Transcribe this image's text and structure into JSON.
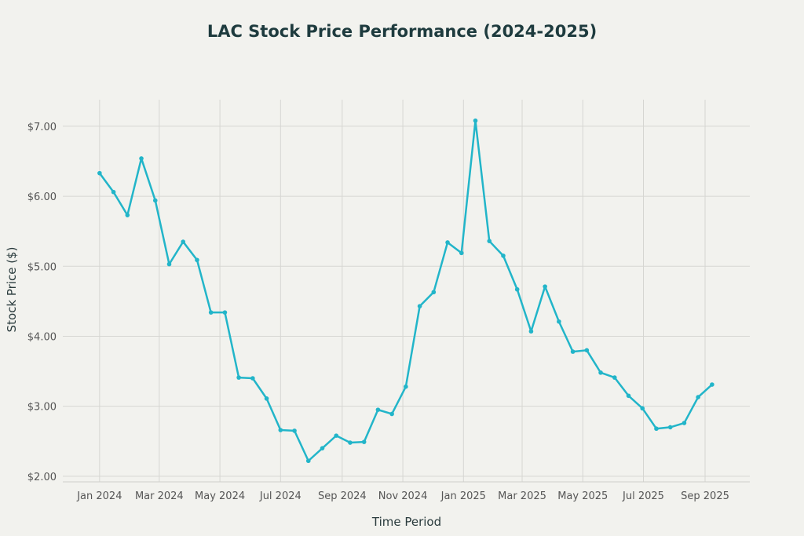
{
  "chart_data": {
    "type": "line",
    "title": "LAC Stock Price Performance (2024-2025)",
    "xlabel": "Time Period",
    "ylabel": "Stock Price ($)",
    "ylim": [
      1.92,
      7.38
    ],
    "xlim": [
      "2023-11-25",
      "2025-10-16"
    ],
    "grid": true,
    "line_color": "#22b5c9",
    "background": "#f2f2ee",
    "x_ticks": [
      {
        "date": "2024-01-01",
        "label": "Jan 2024"
      },
      {
        "date": "2024-03-01",
        "label": "Mar 2024"
      },
      {
        "date": "2024-05-01",
        "label": "May 2024"
      },
      {
        "date": "2024-07-01",
        "label": "Jul 2024"
      },
      {
        "date": "2024-09-01",
        "label": "Sep 2024"
      },
      {
        "date": "2024-11-01",
        "label": "Nov 2024"
      },
      {
        "date": "2025-01-01",
        "label": "Jan 2025"
      },
      {
        "date": "2025-03-01",
        "label": "Mar 2025"
      },
      {
        "date": "2025-05-01",
        "label": "May 2025"
      },
      {
        "date": "2025-07-01",
        "label": "Jul 2025"
      },
      {
        "date": "2025-09-01",
        "label": "Sep 2025"
      }
    ],
    "y_ticks": [
      {
        "value": 2,
        "label": "$2.00"
      },
      {
        "value": 3,
        "label": "$3.00"
      },
      {
        "value": 4,
        "label": "$4.00"
      },
      {
        "value": 5,
        "label": "$5.00"
      },
      {
        "value": 6,
        "label": "$6.00"
      },
      {
        "value": 7,
        "label": "$7.00"
      }
    ],
    "x": [
      "2024-01-01",
      "2024-01-15",
      "2024-01-29",
      "2024-02-12",
      "2024-02-26",
      "2024-03-11",
      "2024-03-25",
      "2024-04-08",
      "2024-04-22",
      "2024-05-06",
      "2024-05-20",
      "2024-06-03",
      "2024-06-17",
      "2024-07-01",
      "2024-07-15",
      "2024-07-29",
      "2024-08-12",
      "2024-08-26",
      "2024-09-09",
      "2024-09-23",
      "2024-10-07",
      "2024-10-21",
      "2024-11-04",
      "2024-11-18",
      "2024-12-02",
      "2024-12-16",
      "2024-12-30",
      "2025-01-13",
      "2025-01-27",
      "2025-02-10",
      "2025-02-24",
      "2025-03-10",
      "2025-03-24",
      "2025-04-07",
      "2025-04-21",
      "2025-05-05",
      "2025-05-19",
      "2025-06-02",
      "2025-06-16",
      "2025-06-30",
      "2025-07-14",
      "2025-07-28",
      "2025-08-11",
      "2025-08-25",
      "2025-09-08"
    ],
    "values": [
      6.33,
      6.06,
      5.73,
      6.54,
      5.94,
      5.03,
      5.35,
      5.09,
      4.34,
      4.34,
      3.41,
      3.4,
      3.11,
      2.66,
      2.65,
      2.22,
      2.4,
      2.58,
      2.48,
      2.49,
      2.95,
      2.89,
      3.28,
      4.43,
      4.63,
      5.34,
      5.19,
      7.08,
      5.36,
      5.15,
      4.67,
      4.07,
      4.71,
      4.21,
      3.78,
      3.8,
      3.48,
      3.41,
      3.15,
      2.97,
      2.68,
      2.7,
      2.76,
      3.13,
      3.31
    ]
  }
}
